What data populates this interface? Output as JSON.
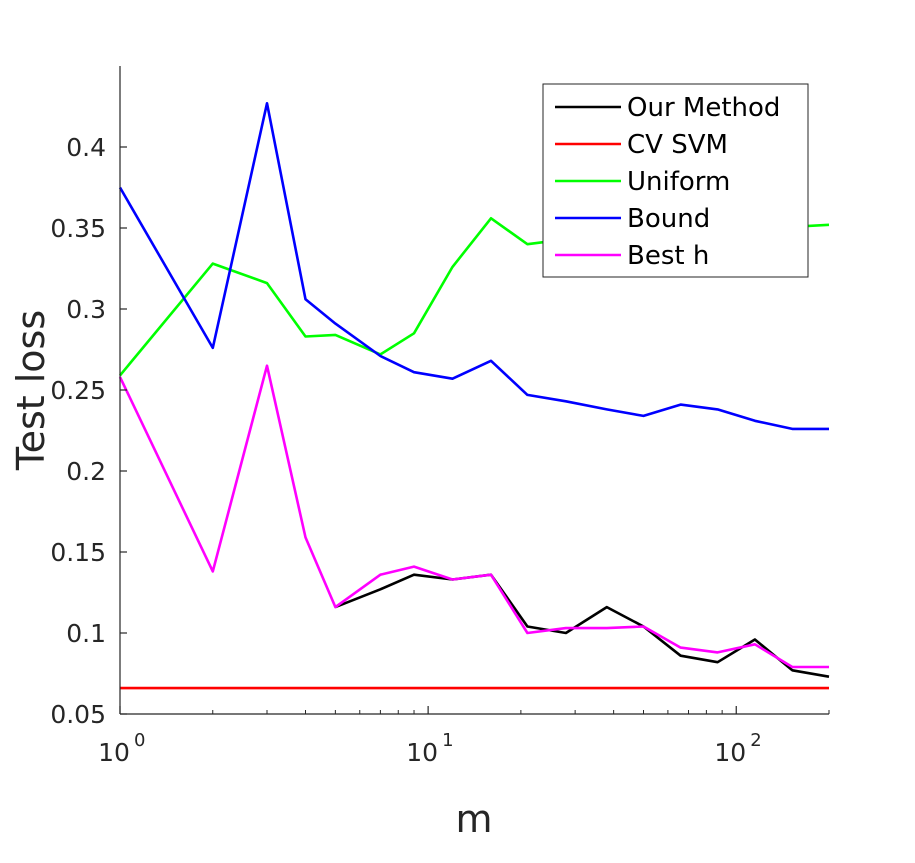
{
  "chart_data": {
    "type": "line",
    "title": "",
    "xlabel": "m",
    "ylabel": "Test loss",
    "xscale": "log",
    "xlim": [
      1,
      200
    ],
    "ylim": [
      0.05,
      0.45
    ],
    "x_ticks": [
      {
        "base": "10",
        "exp": "0",
        "value": 1
      },
      {
        "base": "10",
        "exp": "1",
        "value": 10
      },
      {
        "base": "10",
        "exp": "2",
        "value": 100
      }
    ],
    "y_ticks": [
      "0.05",
      "0.1",
      "0.15",
      "0.2",
      "0.25",
      "0.3",
      "0.35",
      "0.4"
    ],
    "legend_position": "top-right",
    "series": [
      {
        "name": "Our Method",
        "color": "#000000",
        "x": [
          5,
          7,
          9,
          12,
          16,
          21,
          28,
          38,
          50,
          66,
          87,
          115,
          152,
          200
        ],
        "values": [
          0.116,
          0.127,
          0.136,
          0.133,
          0.136,
          0.104,
          0.1,
          0.116,
          0.104,
          0.086,
          0.082,
          0.096,
          0.077,
          0.073
        ]
      },
      {
        "name": "CV SVM",
        "color": "#ff0000",
        "x": [
          1,
          200
        ],
        "values": [
          0.066,
          0.066
        ]
      },
      {
        "name": "Uniform",
        "color": "#00ff00",
        "x": [
          1,
          2,
          3,
          4,
          5,
          7,
          9,
          12,
          16,
          21,
          28,
          200
        ],
        "values": [
          0.259,
          0.328,
          0.316,
          0.283,
          0.284,
          0.272,
          0.285,
          0.326,
          0.356,
          0.34,
          0.343,
          0.352
        ]
      },
      {
        "name": "Bound",
        "color": "#0000ff",
        "x": [
          1,
          2,
          3,
          4,
          5,
          7,
          9,
          12,
          16,
          21,
          28,
          38,
          50,
          66,
          87,
          115,
          152,
          200
        ],
        "values": [
          0.375,
          0.276,
          0.427,
          0.306,
          0.291,
          0.271,
          0.261,
          0.257,
          0.268,
          0.247,
          0.243,
          0.238,
          0.234,
          0.241,
          0.238,
          0.231,
          0.226,
          0.226
        ]
      },
      {
        "name": "Best h",
        "color": "#ff00ff",
        "x": [
          1,
          2,
          3,
          4,
          5,
          7,
          9,
          12,
          16,
          21,
          28,
          38,
          50,
          66,
          87,
          115,
          152,
          200
        ],
        "values": [
          0.258,
          0.138,
          0.265,
          0.159,
          0.116,
          0.136,
          0.141,
          0.133,
          0.136,
          0.1,
          0.103,
          0.103,
          0.104,
          0.091,
          0.088,
          0.093,
          0.079,
          0.079
        ]
      }
    ]
  }
}
